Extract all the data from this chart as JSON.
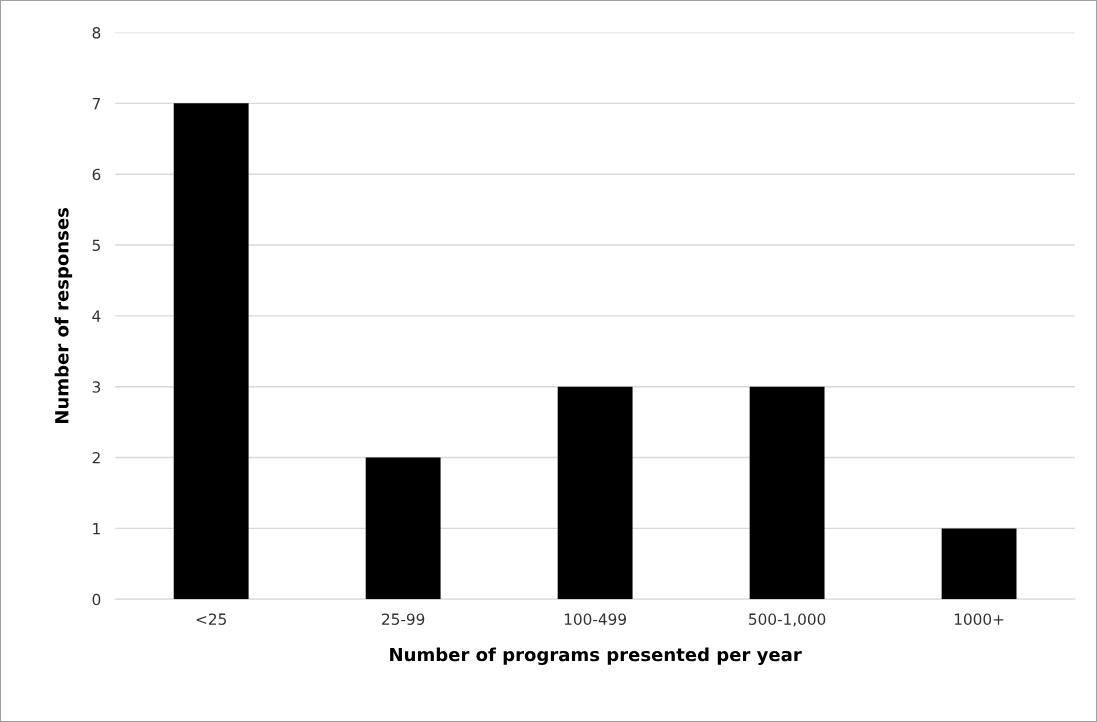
{
  "chart_data": {
    "type": "bar",
    "xlabel": "Number of programs presented per year",
    "ylabel": "Number of responses",
    "categories": [
      "<25",
      "25-99",
      "100-499",
      "500-1,000",
      "1000+"
    ],
    "values": [
      7,
      2,
      3,
      3,
      1
    ],
    "color": "#000000",
    "ylim": [
      0,
      8
    ],
    "yticks": [
      0,
      1,
      2,
      3,
      4,
      5,
      6,
      7,
      8
    ],
    "grid": "y",
    "legend": false
  }
}
